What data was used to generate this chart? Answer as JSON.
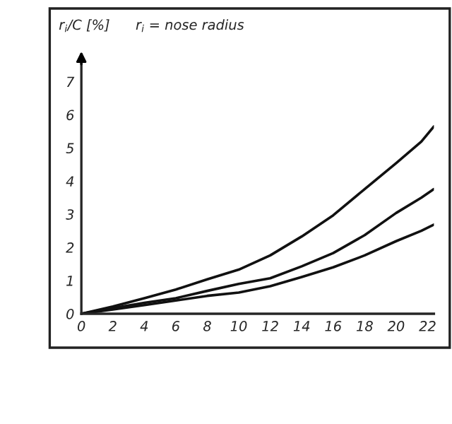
{
  "chart_data": {
    "type": "line",
    "ylabel": "r$_{i}$/C [%]",
    "annotations": [
      "r$_{i}$ = nose radius"
    ],
    "x": [
      0,
      2,
      4,
      6,
      8,
      10,
      12,
      14,
      16,
      18,
      20,
      21.6,
      22.4
    ],
    "series": [
      {
        "color": "#111111",
        "values": [
          0,
          0.22,
          0.47,
          0.73,
          1.04,
          1.33,
          1.76,
          2.33,
          2.97,
          3.76,
          4.54,
          5.19,
          5.65
        ]
      },
      {
        "color": "#111111",
        "values": [
          0,
          0.17,
          0.33,
          0.47,
          0.69,
          0.9,
          1.07,
          1.43,
          1.83,
          2.37,
          3.04,
          3.5,
          3.76
        ]
      },
      {
        "color": "#111111",
        "values": [
          0,
          0.13,
          0.26,
          0.4,
          0.54,
          0.64,
          0.83,
          1.11,
          1.4,
          1.76,
          2.19,
          2.5,
          2.69
        ]
      }
    ],
    "xlim": [
      0,
      22.4
    ],
    "ylim": [
      0,
      7.8
    ],
    "xticks": [
      0,
      2,
      4,
      6,
      8,
      10,
      12,
      14,
      16,
      18,
      20,
      22
    ],
    "yticks": [
      0,
      1,
      2,
      3,
      4,
      5,
      6,
      7
    ],
    "grid": false,
    "legend": false,
    "marker": "none",
    "line_style": "solid"
  }
}
